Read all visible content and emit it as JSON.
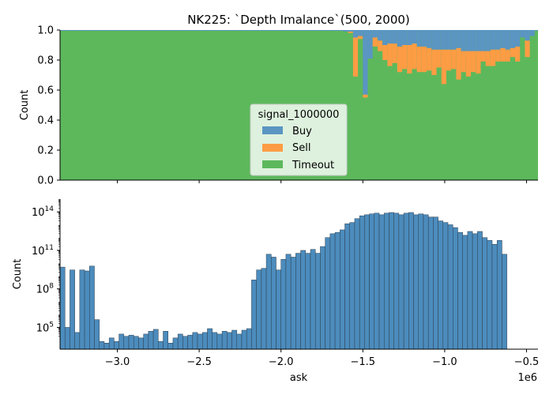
{
  "chart_data": [
    {
      "type": "bar",
      "stacked": "fill",
      "title": "NK225: `Depth Imalance`(500, 2000)",
      "ylabel": "Count",
      "ylim": [
        0,
        1
      ],
      "yticks": [
        "0.0",
        "0.2",
        "0.4",
        "0.6",
        "0.8",
        "1.0"
      ],
      "x_range": [
        -3350000,
        -430000
      ],
      "colors": {
        "Buy": "#5b95c2",
        "Sell": "#fd9c44",
        "Timeout": "#5db85c"
      },
      "legend": {
        "title": "signal_1000000",
        "entries": [
          "Buy",
          "Sell",
          "Timeout"
        ],
        "placement": "center"
      },
      "bins": {
        "x_start": [
          -1650000,
          -1620000,
          -1590000,
          -1560000,
          -1530000,
          -1500000,
          -1470000,
          -1440000,
          -1410000,
          -1380000,
          -1350000,
          -1320000,
          -1290000,
          -1260000,
          -1230000,
          -1200000,
          -1170000,
          -1140000,
          -1110000,
          -1080000,
          -1050000,
          -1020000,
          -990000,
          -960000,
          -930000,
          -900000,
          -870000,
          -840000,
          -810000,
          -780000,
          -750000,
          -720000,
          -690000,
          -660000,
          -630000,
          -600000,
          -570000,
          -540000,
          -510000,
          -480000,
          -450000
        ],
        "timeout": [
          1.0,
          0.99,
          0.98,
          0.69,
          0.94,
          0.55,
          0.81,
          0.89,
          0.86,
          0.8,
          0.76,
          0.78,
          0.72,
          0.74,
          0.71,
          0.74,
          0.72,
          0.72,
          0.73,
          0.7,
          0.75,
          0.64,
          0.73,
          0.74,
          0.67,
          0.72,
          0.69,
          0.72,
          0.71,
          0.79,
          0.76,
          0.76,
          0.79,
          0.79,
          0.79,
          0.82,
          0.79,
          0.95,
          0.82,
          0.96,
          1.0
        ],
        "sell": [
          0.0,
          0.0,
          0.01,
          0.26,
          0.02,
          0.02,
          0.0,
          0.06,
          0.07,
          0.1,
          0.15,
          0.13,
          0.17,
          0.16,
          0.19,
          0.17,
          0.17,
          0.17,
          0.15,
          0.17,
          0.12,
          0.23,
          0.14,
          0.13,
          0.21,
          0.14,
          0.17,
          0.14,
          0.15,
          0.07,
          0.1,
          0.11,
          0.08,
          0.09,
          0.08,
          0.06,
          0.1,
          0.0,
          0.11,
          0.0,
          0.0
        ]
      }
    },
    {
      "type": "bar",
      "ylabel": "Count",
      "xlabel": "ask",
      "xscale_label": "1e6",
      "yscale": "log",
      "ylim": [
        2000,
        1000000000000000.0
      ],
      "x_range": [
        -3350000,
        -430000
      ],
      "xticks": [
        -3000000,
        -2500000,
        -2000000,
        -1500000,
        -1000000,
        -500000
      ],
      "xtick_labels": [
        "−3.0",
        "−2.5",
        "−2.0",
        "−1.5",
        "−1.0",
        "−0.5"
      ],
      "ytick_labels": [
        "10^5",
        "10^8",
        "10^11",
        "10^14"
      ],
      "bin_start": -3350000,
      "bin_width": 30000,
      "color": "#4c8cbd",
      "values": [
        5000000000.0,
        100000.0,
        3000000000.0,
        40000.0,
        3000000000.0,
        2500000000.0,
        6000000000.0,
        400000.0,
        8000.0,
        6000.0,
        15000.0,
        8000.0,
        30000.0,
        20000.0,
        25000.0,
        20000.0,
        15000.0,
        30000.0,
        50000.0,
        70000.0,
        8000.0,
        50000.0,
        6000.0,
        15000.0,
        30000.0,
        20000.0,
        25000.0,
        40000.0,
        30000.0,
        40000.0,
        80000.0,
        40000.0,
        30000.0,
        50000.0,
        40000.0,
        60000.0,
        30000.0,
        60000.0,
        80000.0,
        500000000.0,
        3000000000.0,
        4000000000.0,
        50000000000.0,
        30000000000.0,
        3000000000.0,
        20000000000.0,
        50000000000.0,
        30000000000.0,
        60000000000.0,
        100000000000.0,
        60000000000.0,
        120000000000.0,
        60000000000.0,
        200000000000.0,
        1000000000000.0,
        2000000000000.0,
        2500000000000.0,
        4000000000000.0,
        12000000000000.0,
        15000000000000.0,
        30000000000000.0,
        50000000000000.0,
        60000000000000.0,
        70000000000000.0,
        80000000000000.0,
        60000000000000.0,
        80000000000000.0,
        90000000000000.0,
        80000000000000.0,
        60000000000000.0,
        80000000000000.0,
        90000000000000.0,
        60000000000000.0,
        70000000000000.0,
        60000000000000.0,
        40000000000000.0,
        40000000000000.0,
        20000000000000.0,
        15000000000000.0,
        10000000000000.0,
        6000000000000.0,
        2500000000000.0,
        1500000000000.0,
        3000000000000.0,
        2000000000000.0,
        3000000000000.0,
        1000000000000.0,
        600000000000.0,
        300000000000.0,
        600000000000.0,
        50000000000.0
      ]
    }
  ]
}
